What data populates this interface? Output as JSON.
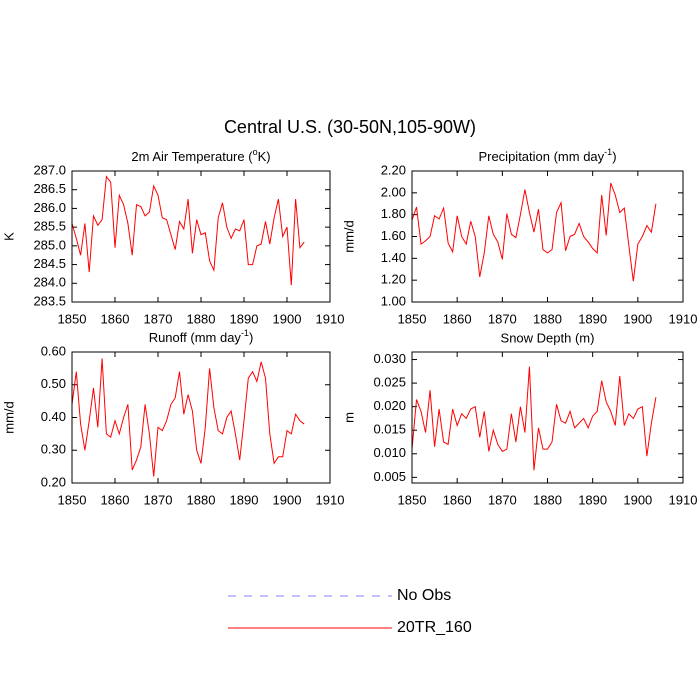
{
  "title": "Central U.S. (30-50N,105-90W)",
  "chart_data": [
    {
      "type": "line",
      "title": {
        "text": "2m Air Temperature (",
        "sup": "o",
        "after": "K)"
      },
      "ylabel": "K",
      "x": [
        1850,
        1851,
        1852,
        1853,
        1854,
        1855,
        1856,
        1857,
        1858,
        1859,
        1860,
        1861,
        1862,
        1863,
        1864,
        1865,
        1866,
        1867,
        1868,
        1869,
        1870,
        1871,
        1872,
        1873,
        1874,
        1875,
        1876,
        1877,
        1878,
        1879,
        1880,
        1881,
        1882,
        1883,
        1884,
        1885,
        1886,
        1887,
        1888,
        1889,
        1890,
        1891,
        1892,
        1893,
        1894,
        1895,
        1896,
        1897,
        1898,
        1899,
        1900,
        1901,
        1902,
        1903,
        1904
      ],
      "series": [
        {
          "color": "#ff0000",
          "values": [
            285.6,
            285.2,
            284.75,
            285.6,
            284.3,
            285.8,
            285.55,
            285.7,
            286.85,
            286.7,
            284.95,
            286.35,
            286.1,
            285.6,
            284.75,
            286.1,
            286.05,
            285.8,
            285.9,
            286.6,
            286.35,
            285.75,
            285.7,
            285.3,
            284.9,
            285.65,
            285.45,
            286.25,
            284.8,
            285.7,
            285.3,
            285.35,
            284.6,
            284.35,
            285.75,
            286.15,
            285.5,
            285.2,
            285.45,
            285.4,
            285.7,
            284.5,
            284.5,
            285.0,
            285.05,
            285.65,
            285.05,
            285.75,
            286.25,
            285.25,
            285.5,
            283.95,
            286.25,
            284.95,
            285.1
          ]
        }
      ],
      "xlim": [
        1850,
        1910
      ],
      "xticks": [
        1850,
        1860,
        1870,
        1880,
        1890,
        1900,
        1910
      ],
      "ylim": [
        283.5,
        287.0
      ],
      "yticks": [
        283.5,
        {
          "value": 284,
          "label": "284.0"
        },
        284.5,
        {
          "value": 285,
          "label": "285.0"
        },
        285.5,
        {
          "value": 286,
          "label": "286.0"
        },
        286.5,
        {
          "value": 287,
          "label": "287.0"
        }
      ]
    },
    {
      "type": "line",
      "title": {
        "text": "Precipitation (mm day",
        "sup": "-1",
        "after": ")"
      },
      "ylabel": "mm/d",
      "x": [
        1850,
        1851,
        1852,
        1853,
        1854,
        1855,
        1856,
        1857,
        1858,
        1859,
        1860,
        1861,
        1862,
        1863,
        1864,
        1865,
        1866,
        1867,
        1868,
        1869,
        1870,
        1871,
        1872,
        1873,
        1874,
        1875,
        1876,
        1877,
        1878,
        1879,
        1880,
        1881,
        1882,
        1883,
        1884,
        1885,
        1886,
        1887,
        1888,
        1889,
        1890,
        1891,
        1892,
        1893,
        1894,
        1895,
        1896,
        1897,
        1898,
        1899,
        1900,
        1901,
        1902,
        1903,
        1904
      ],
      "series": [
        {
          "color": "#ff0000",
          "values": [
            1.75,
            1.87,
            1.53,
            1.56,
            1.6,
            1.79,
            1.76,
            1.86,
            1.54,
            1.46,
            1.79,
            1.6,
            1.53,
            1.74,
            1.6,
            1.23,
            1.45,
            1.79,
            1.62,
            1.55,
            1.39,
            1.81,
            1.62,
            1.59,
            1.8,
            2.03,
            1.82,
            1.64,
            1.85,
            1.48,
            1.45,
            1.48,
            1.82,
            1.91,
            1.47,
            1.6,
            1.62,
            1.72,
            1.6,
            1.55,
            1.49,
            1.45,
            1.98,
            1.61,
            2.09,
            1.98,
            1.82,
            1.86,
            1.52,
            1.19,
            1.53,
            1.6,
            1.7,
            1.64,
            1.9
          ]
        }
      ],
      "xlim": [
        1850,
        1910
      ],
      "xticks": [
        1850,
        1860,
        1870,
        1880,
        1890,
        1900,
        1910
      ],
      "ylim": [
        1.0,
        2.2
      ],
      "yticks": [
        {
          "value": 1.0,
          "label": "1.00"
        },
        {
          "value": 1.2,
          "label": "1.20"
        },
        {
          "value": 1.4,
          "label": "1.40"
        },
        {
          "value": 1.6,
          "label": "1.60"
        },
        {
          "value": 1.8,
          "label": "1.80"
        },
        {
          "value": 2.0,
          "label": "2.00"
        },
        {
          "value": 2.2,
          "label": "2.20"
        }
      ]
    },
    {
      "type": "line",
      "title": {
        "text": "Runoff (mm day",
        "sup": "-1",
        "after": ")"
      },
      "ylabel": "mm/d",
      "x": [
        1850,
        1851,
        1852,
        1853,
        1854,
        1855,
        1856,
        1857,
        1858,
        1859,
        1860,
        1861,
        1862,
        1863,
        1864,
        1865,
        1866,
        1867,
        1868,
        1869,
        1870,
        1871,
        1872,
        1873,
        1874,
        1875,
        1876,
        1877,
        1878,
        1879,
        1880,
        1881,
        1882,
        1883,
        1884,
        1885,
        1886,
        1887,
        1888,
        1889,
        1890,
        1891,
        1892,
        1893,
        1894,
        1895,
        1896,
        1897,
        1898,
        1899,
        1900,
        1901,
        1902,
        1903,
        1904
      ],
      "series": [
        {
          "color": "#ff0000",
          "values": [
            0.44,
            0.54,
            0.38,
            0.3,
            0.39,
            0.49,
            0.37,
            0.58,
            0.35,
            0.34,
            0.39,
            0.35,
            0.4,
            0.44,
            0.24,
            0.27,
            0.31,
            0.44,
            0.35,
            0.22,
            0.37,
            0.36,
            0.39,
            0.44,
            0.46,
            0.54,
            0.41,
            0.47,
            0.42,
            0.3,
            0.26,
            0.37,
            0.55,
            0.43,
            0.36,
            0.35,
            0.4,
            0.42,
            0.35,
            0.27,
            0.39,
            0.52,
            0.54,
            0.51,
            0.57,
            0.52,
            0.35,
            0.26,
            0.28,
            0.28,
            0.36,
            0.35,
            0.41,
            0.39,
            0.38
          ]
        }
      ],
      "xlim": [
        1850,
        1910
      ],
      "xticks": [
        1850,
        1860,
        1870,
        1880,
        1890,
        1900,
        1910
      ],
      "ylim": [
        0.2,
        0.6
      ],
      "yticks": [
        {
          "value": 0.2,
          "label": "0.20"
        },
        {
          "value": 0.3,
          "label": "0.30"
        },
        {
          "value": 0.4,
          "label": "0.40"
        },
        {
          "value": 0.5,
          "label": "0.50"
        },
        {
          "value": 0.6,
          "label": "0.60"
        }
      ]
    },
    {
      "type": "line",
      "title": "Snow Depth (m)",
      "ylabel": "m",
      "x": [
        1850,
        1851,
        1852,
        1853,
        1854,
        1855,
        1856,
        1857,
        1858,
        1859,
        1860,
        1861,
        1862,
        1863,
        1864,
        1865,
        1866,
        1867,
        1868,
        1869,
        1870,
        1871,
        1872,
        1873,
        1874,
        1875,
        1876,
        1877,
        1878,
        1879,
        1880,
        1881,
        1882,
        1883,
        1884,
        1885,
        1886,
        1887,
        1888,
        1889,
        1890,
        1891,
        1892,
        1893,
        1894,
        1895,
        1896,
        1897,
        1898,
        1899,
        1900,
        1901,
        1902,
        1903,
        1904
      ],
      "series": [
        {
          "color": "#ff0000",
          "values": [
            0.011,
            0.0215,
            0.019,
            0.0145,
            0.0235,
            0.0115,
            0.0195,
            0.0125,
            0.012,
            0.0195,
            0.016,
            0.0185,
            0.0175,
            0.0195,
            0.02,
            0.0135,
            0.019,
            0.0105,
            0.015,
            0.012,
            0.0105,
            0.011,
            0.0185,
            0.0125,
            0.02,
            0.0145,
            0.0285,
            0.0065,
            0.0155,
            0.011,
            0.011,
            0.0125,
            0.0205,
            0.017,
            0.0165,
            0.019,
            0.0155,
            0.0165,
            0.0175,
            0.0155,
            0.018,
            0.019,
            0.0255,
            0.021,
            0.019,
            0.016,
            0.0265,
            0.016,
            0.0185,
            0.0175,
            0.0195,
            0.02,
            0.0095,
            0.0165,
            0.022
          ]
        }
      ],
      "xlim": [
        1850,
        1910
      ],
      "xticks": [
        1850,
        1860,
        1870,
        1880,
        1890,
        1900,
        1910
      ],
      "ylim": [
        0.0038,
        0.0316
      ],
      "yticks": [
        0.005,
        {
          "value": 0.01,
          "label": "0.010"
        },
        0.015,
        {
          "value": 0.02,
          "label": "0.020"
        },
        0.025,
        {
          "value": 0.03,
          "label": "0.030"
        }
      ]
    }
  ],
  "legend": [
    {
      "name": "No Obs",
      "color": "#8080ff",
      "dash": "8,8"
    },
    {
      "name": "20TR_160",
      "color": "#ff0000"
    }
  ]
}
